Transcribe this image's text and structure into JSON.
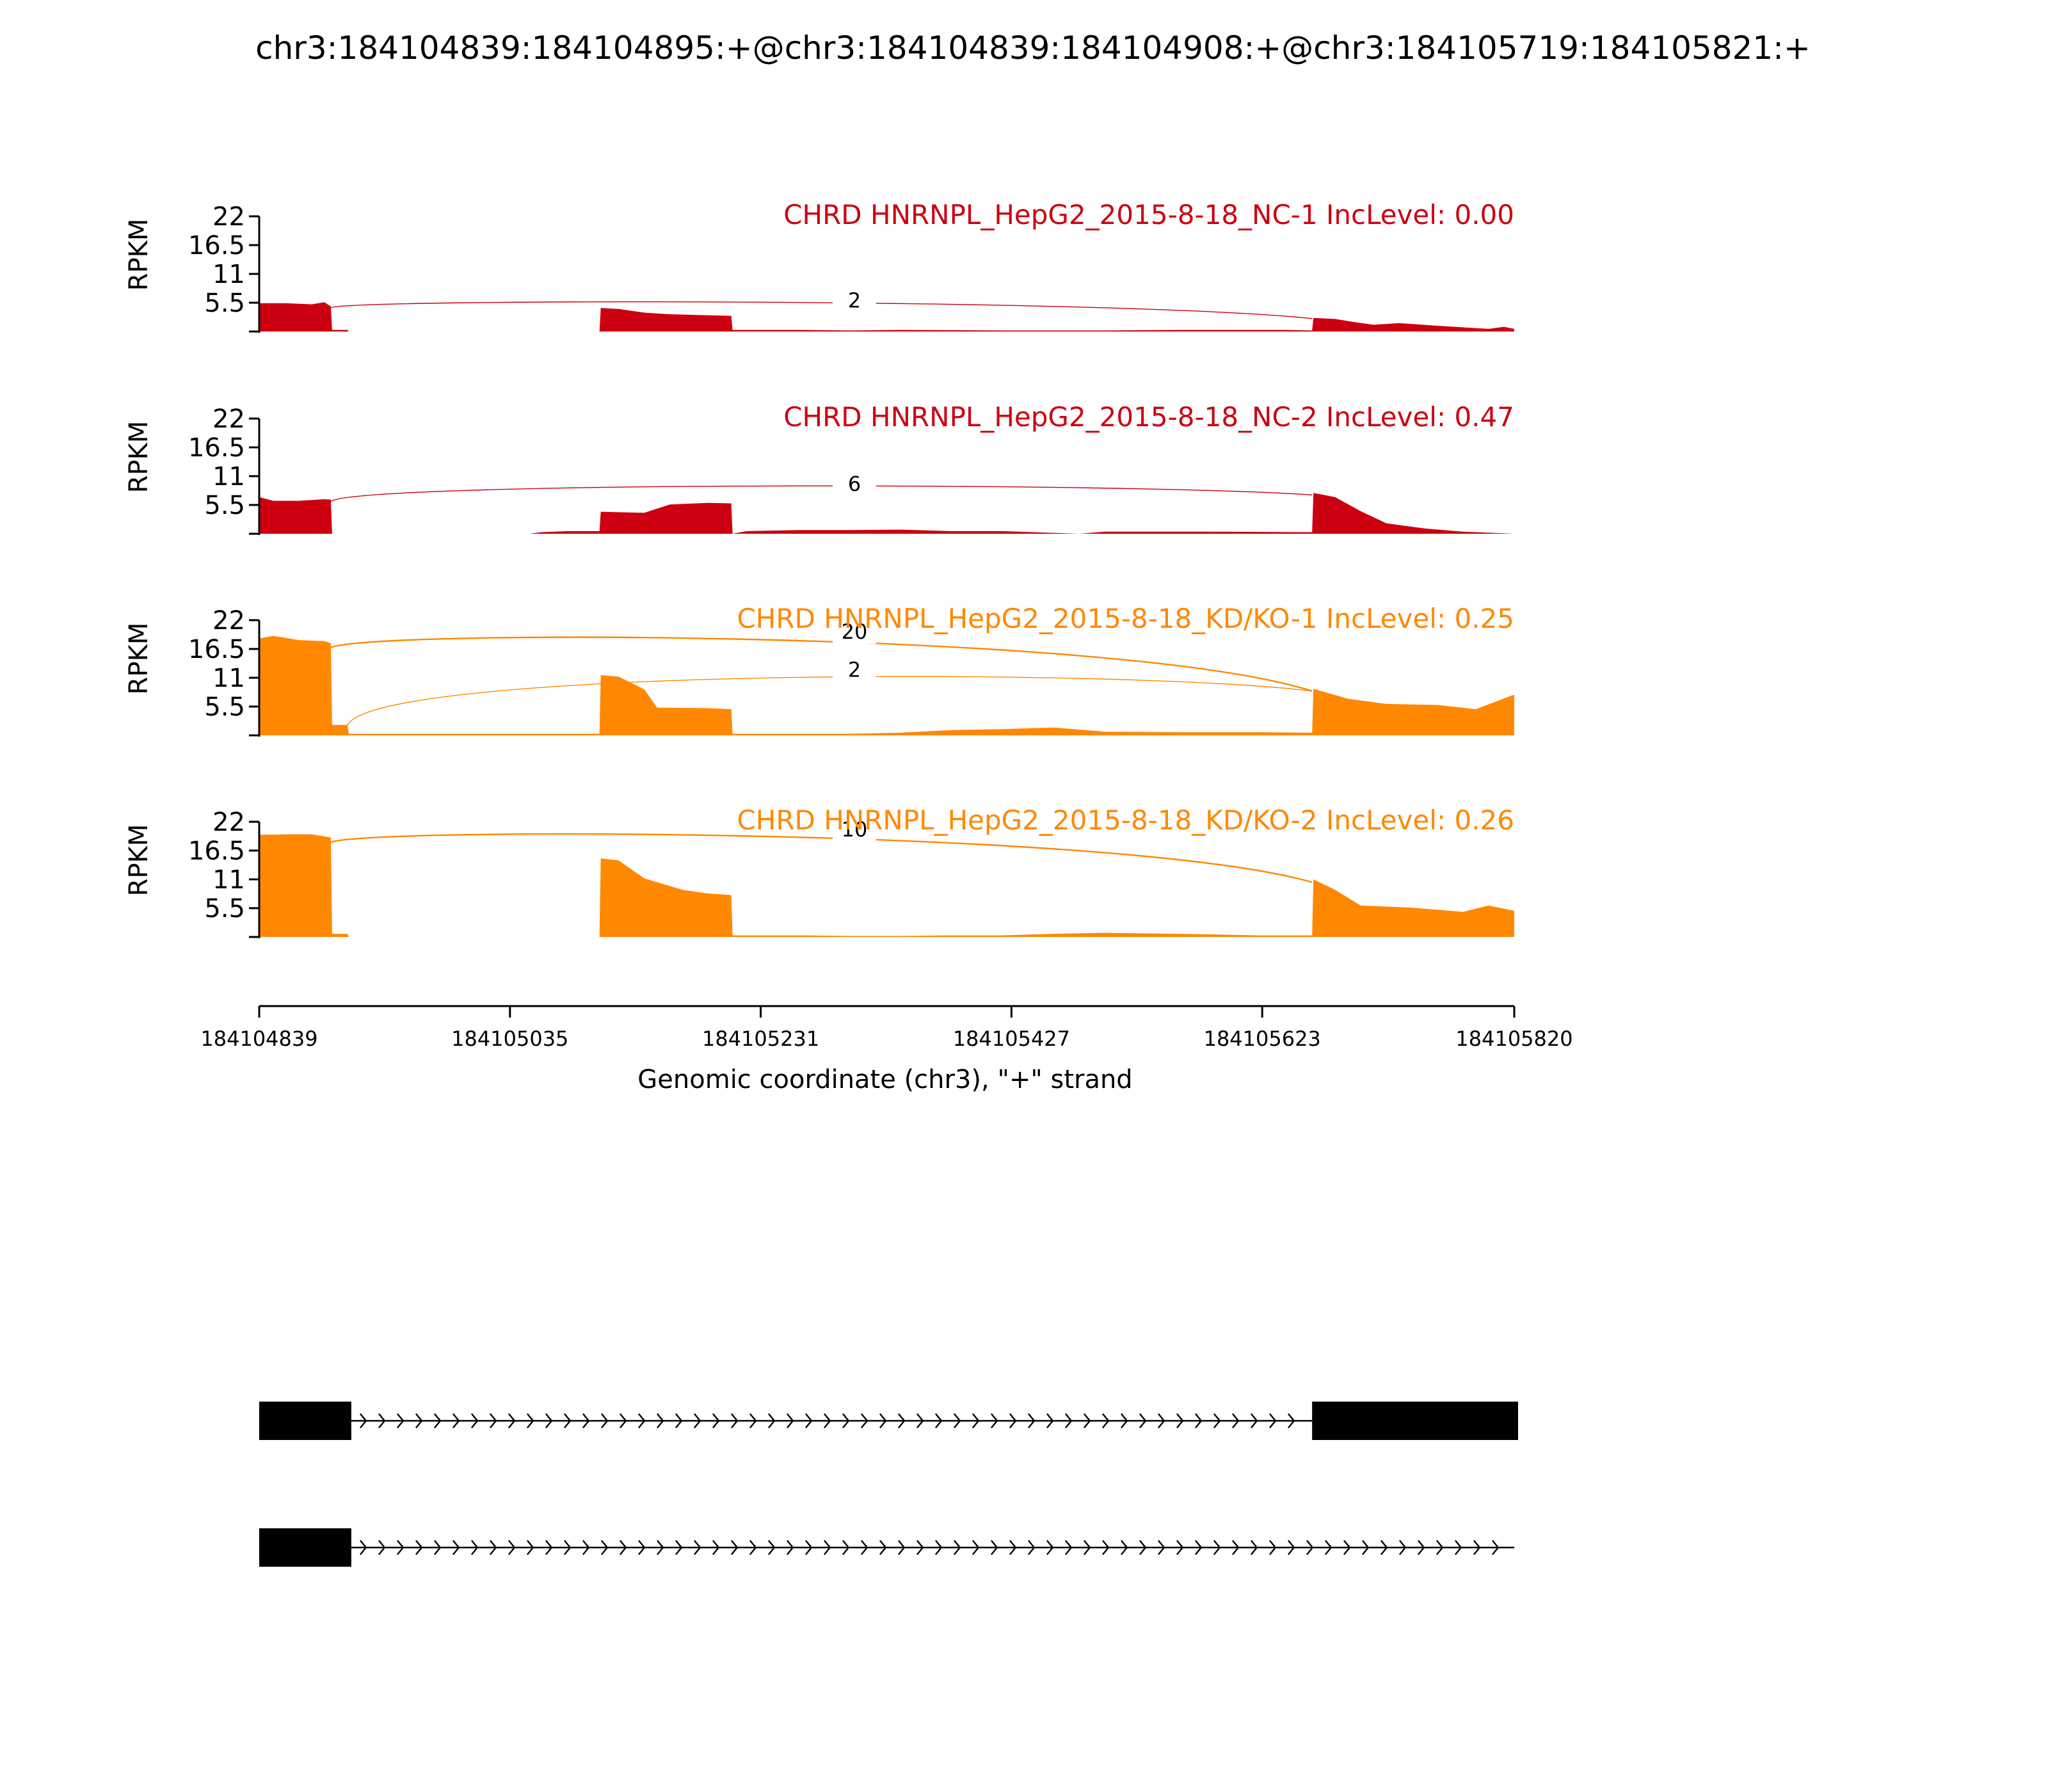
{
  "chart_data": {
    "type": "area",
    "title": "chr3:184104839:184104895:+@chr3:184104839:184104908:+@chr3:184105719:184105821:+",
    "ylabel": "RPKM",
    "xlabel": "Genomic coordinate (chr3), \"+\" strand",
    "xlim": [
      184104839,
      184105820
    ],
    "ylim": [
      0,
      22
    ],
    "yticks": [
      "22",
      "16.5",
      "11",
      "5.5"
    ],
    "xticks": [
      "184104839",
      "184105035",
      "184105231",
      "184105427",
      "184105623",
      "184105820"
    ],
    "colors": {
      "nc": "#CC0011",
      "kd": "#FF8800",
      "gene": "#000000"
    },
    "tracks": [
      {
        "label": "CHRD HNRNPL_HepG2_2015-8-18_NC-1 IncLevel: 0.00",
        "color": "#CC0011",
        "coverage": [
          [
            184104839,
            5.4
          ],
          [
            184104860,
            5.4
          ],
          [
            184104880,
            5.2
          ],
          [
            184104890,
            5.6
          ],
          [
            184104895,
            4.8
          ],
          [
            184104896,
            0.3
          ],
          [
            184104908,
            0.3
          ],
          [
            184104909,
            0
          ],
          [
            184105105,
            0
          ],
          [
            184105106,
            4.5
          ],
          [
            184105120,
            4.3
          ],
          [
            184105140,
            3.6
          ],
          [
            184105160,
            3.3
          ],
          [
            184105190,
            3.1
          ],
          [
            184105208,
            3.0
          ],
          [
            184105209,
            0.3
          ],
          [
            184105260,
            0.3
          ],
          [
            184105300,
            0.2
          ],
          [
            184105340,
            0.3
          ],
          [
            184105420,
            0.2
          ],
          [
            184105500,
            0.2
          ],
          [
            184105560,
            0.3
          ],
          [
            184105640,
            0.3
          ],
          [
            184105662,
            0.2
          ],
          [
            184105663,
            2.6
          ],
          [
            184105680,
            2.4
          ],
          [
            184105695,
            1.8
          ],
          [
            184105710,
            1.3
          ],
          [
            184105730,
            1.6
          ],
          [
            184105760,
            1.1
          ],
          [
            184105800,
            0.5
          ],
          [
            184105812,
            0.9
          ],
          [
            184105820,
            0.5
          ]
        ],
        "junctions": [
          {
            "start": 184104895,
            "end": 184105662,
            "count": "2",
            "level": 5.8
          }
        ]
      },
      {
        "label": "CHRD HNRNPL_HepG2_2015-8-18_NC-2 IncLevel: 0.47",
        "color": "#CC0011",
        "coverage": [
          [
            184104839,
            7.0
          ],
          [
            184104850,
            6.3
          ],
          [
            184104870,
            6.3
          ],
          [
            184104890,
            6.6
          ],
          [
            184104895,
            6.5
          ],
          [
            184104896,
            0
          ],
          [
            184105050,
            0
          ],
          [
            184105060,
            0.3
          ],
          [
            184105080,
            0.5
          ],
          [
            184105105,
            0.5
          ],
          [
            184105106,
            4.2
          ],
          [
            184105140,
            4.0
          ],
          [
            184105160,
            5.6
          ],
          [
            184105190,
            5.9
          ],
          [
            184105208,
            5.8
          ],
          [
            184105209,
            0
          ],
          [
            184105220,
            0.5
          ],
          [
            184105260,
            0.7
          ],
          [
            184105300,
            0.7
          ],
          [
            184105340,
            0.8
          ],
          [
            184105380,
            0.5
          ],
          [
            184105420,
            0.5
          ],
          [
            184105480,
            0
          ],
          [
            184105500,
            0.4
          ],
          [
            184105580,
            0.4
          ],
          [
            184105650,
            0.3
          ],
          [
            184105662,
            0.3
          ],
          [
            184105663,
            7.8
          ],
          [
            184105680,
            7.0
          ],
          [
            184105700,
            4.3
          ],
          [
            184105720,
            2.0
          ],
          [
            184105750,
            1.0
          ],
          [
            184105780,
            0.4
          ],
          [
            184105820,
            0
          ]
        ],
        "junctions": [
          {
            "start": 184104895,
            "end": 184105662,
            "count": "6",
            "level": 9.4
          }
        ]
      },
      {
        "label": "CHRD HNRNPL_HepG2_2015-8-18_KD/KO-1 IncLevel: 0.25",
        "color": "#FF8800",
        "coverage": [
          [
            184104839,
            18.5
          ],
          [
            184104850,
            19.0
          ],
          [
            184104870,
            18.2
          ],
          [
            184104890,
            18.0
          ],
          [
            184104895,
            17.6
          ],
          [
            184104896,
            2.0
          ],
          [
            184104908,
            2.0
          ],
          [
            184104909,
            0.3
          ],
          [
            184104980,
            0.3
          ],
          [
            184105050,
            0.3
          ],
          [
            184105105,
            0.3
          ],
          [
            184105106,
            11.5
          ],
          [
            184105120,
            11.2
          ],
          [
            184105140,
            8.8
          ],
          [
            184105150,
            5.3
          ],
          [
            184105190,
            5.2
          ],
          [
            184105208,
            5.0
          ],
          [
            184105209,
            0.3
          ],
          [
            184105260,
            0.3
          ],
          [
            184105300,
            0.3
          ],
          [
            184105340,
            0.5
          ],
          [
            184105380,
            1.0
          ],
          [
            184105420,
            1.2
          ],
          [
            184105460,
            1.5
          ],
          [
            184105500,
            0.7
          ],
          [
            184105560,
            0.6
          ],
          [
            184105620,
            0.6
          ],
          [
            184105662,
            0.5
          ],
          [
            184105663,
            8.9
          ],
          [
            184105690,
            7.0
          ],
          [
            184105720,
            6.0
          ],
          [
            184105760,
            5.8
          ],
          [
            184105790,
            5.0
          ],
          [
            184105820,
            7.8
          ]
        ],
        "junctions": [
          {
            "start": 184104895,
            "end": 184105662,
            "count": "20",
            "level": 19.7
          },
          {
            "start": 184104908,
            "end": 184105662,
            "count": "2",
            "level": 12.4
          }
        ]
      },
      {
        "label": "CHRD HNRNPL_HepG2_2015-8-18_KD/KO-2 IncLevel: 0.26",
        "color": "#FF8800",
        "coverage": [
          [
            184104839,
            19.5
          ],
          [
            184104860,
            19.6
          ],
          [
            184104880,
            19.6
          ],
          [
            184104895,
            19.0
          ],
          [
            184104896,
            0.6
          ],
          [
            184104908,
            0.6
          ],
          [
            184104909,
            0
          ],
          [
            184105105,
            0
          ],
          [
            184105106,
            15.0
          ],
          [
            184105120,
            14.6
          ],
          [
            184105140,
            11.2
          ],
          [
            184105170,
            9.0
          ],
          [
            184105190,
            8.3
          ],
          [
            184105208,
            8.0
          ],
          [
            184105209,
            0.3
          ],
          [
            184105260,
            0.3
          ],
          [
            184105300,
            0.2
          ],
          [
            184105340,
            0.2
          ],
          [
            184105380,
            0.3
          ],
          [
            184105420,
            0.3
          ],
          [
            184105460,
            0.6
          ],
          [
            184105500,
            0.8
          ],
          [
            184105560,
            0.6
          ],
          [
            184105620,
            0.3
          ],
          [
            184105662,
            0.3
          ],
          [
            184105663,
            11.0
          ],
          [
            184105680,
            9.0
          ],
          [
            184105700,
            6.0
          ],
          [
            184105740,
            5.6
          ],
          [
            184105780,
            4.8
          ],
          [
            184105800,
            6.0
          ],
          [
            184105820,
            5.0
          ]
        ],
        "junctions": [
          {
            "start": 184104895,
            "end": 184105662,
            "count": "10",
            "level": 20.4
          }
        ]
      }
    ],
    "gene_models": [
      {
        "exons": [
          [
            184104839,
            184104908
          ],
          [
            184105662,
            184105820
          ]
        ],
        "line_end": 184105820
      },
      {
        "exons": [
          [
            184104839,
            184104908
          ]
        ],
        "line_end": 184105820
      }
    ]
  }
}
